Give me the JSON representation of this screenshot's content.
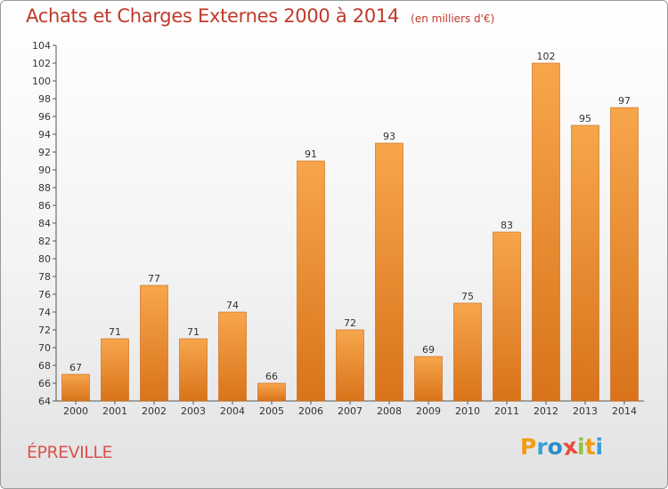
{
  "title": "Achats et Charges Externes 2000 à 2014",
  "subtitle": "(en milliers d'€)",
  "commune": "ÉPREVILLE",
  "logo": {
    "letters": [
      "P",
      "r",
      "o",
      "x",
      "i",
      "t",
      "i"
    ],
    "colors": [
      "#f39c12",
      "#3aa0d8",
      "#2e8bc9",
      "#e74c3c",
      "#8cc63f",
      "#f39c12",
      "#3aa0d8"
    ]
  },
  "colors": {
    "bar_top": "#f7a64c",
    "bar_bottom": "#d9731a",
    "bar_stroke": "#c8650f",
    "title": "#c0392b"
  },
  "chart_data": {
    "type": "bar",
    "title": "Achats et Charges Externes 2000 à 2014",
    "categories": [
      "2000",
      "2001",
      "2002",
      "2003",
      "2004",
      "2005",
      "2006",
      "2007",
      "2008",
      "2009",
      "2010",
      "2011",
      "2012",
      "2013",
      "2014"
    ],
    "values": [
      67,
      71,
      77,
      71,
      74,
      66,
      91,
      72,
      93,
      69,
      75,
      83,
      102,
      95,
      97
    ],
    "ylim": [
      64,
      104
    ],
    "yticks": [
      64,
      66,
      68,
      70,
      72,
      74,
      76,
      78,
      80,
      82,
      84,
      86,
      88,
      90,
      92,
      94,
      96,
      98,
      100,
      102,
      104
    ],
    "grid": false,
    "xlabel": "",
    "ylabel": ""
  }
}
